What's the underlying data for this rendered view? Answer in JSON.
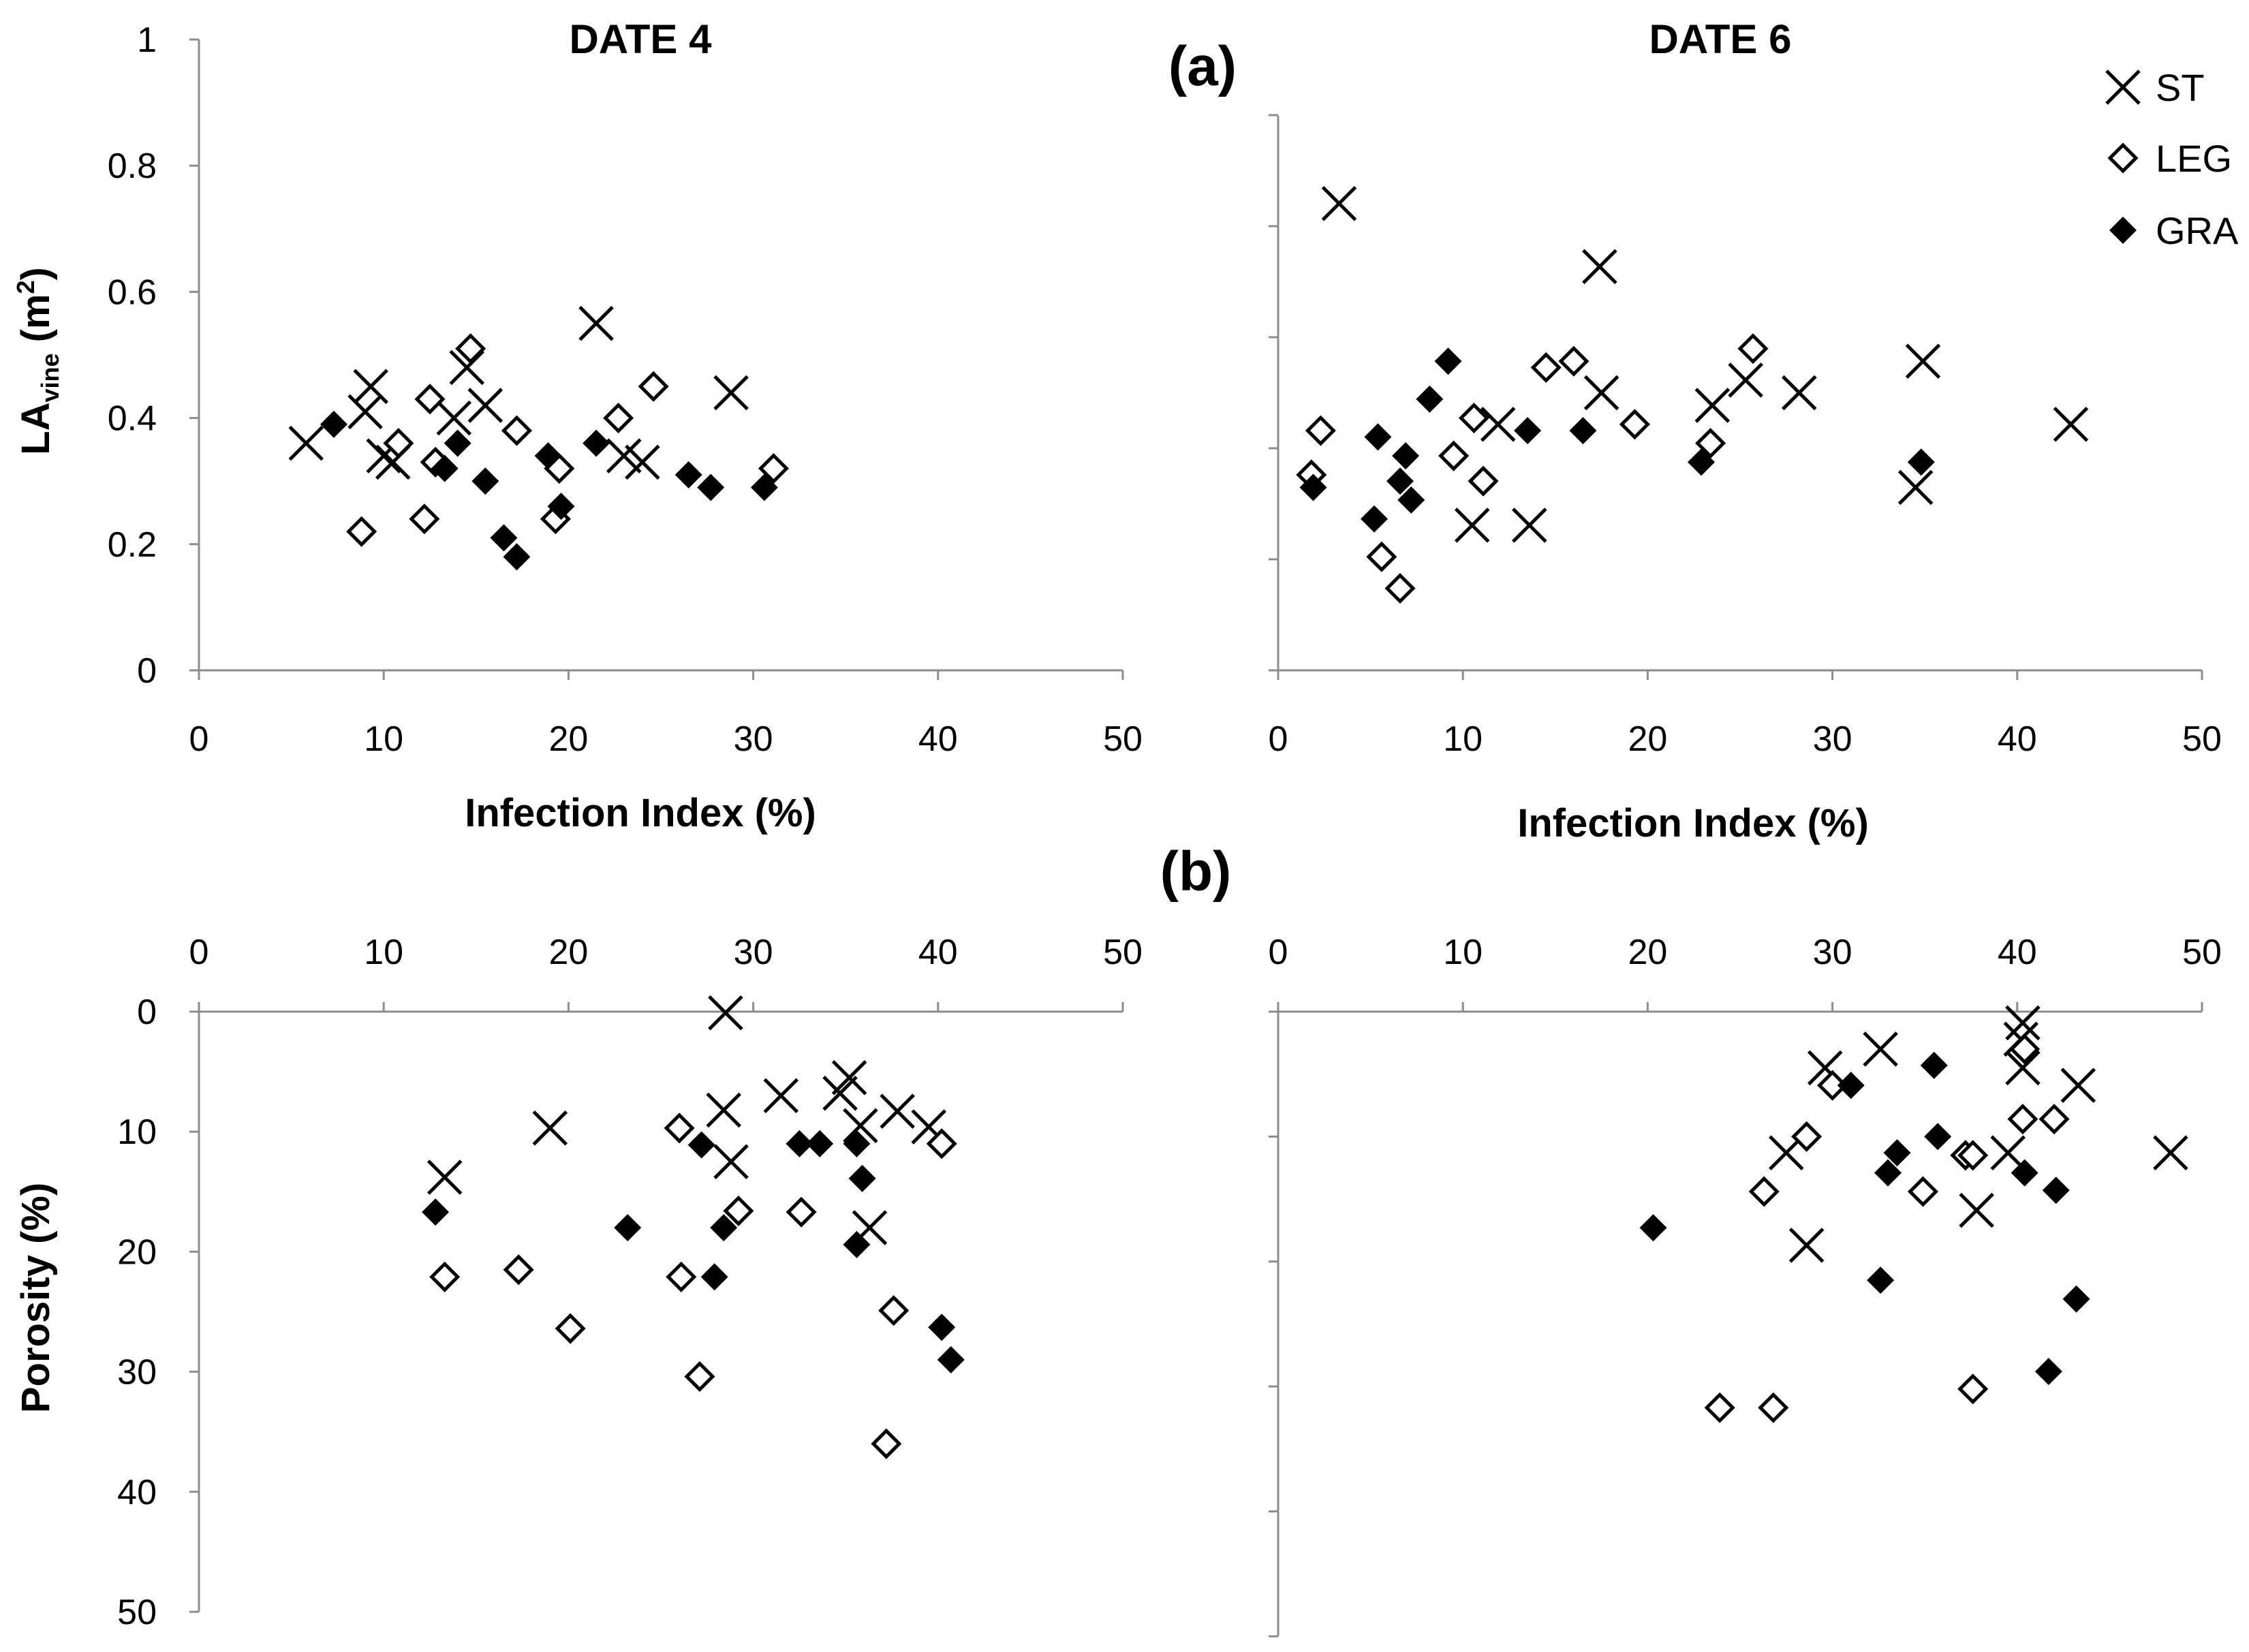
{
  "chart_data": [
    {
      "id": "a-date4",
      "type": "scatter",
      "title": "DATE 4",
      "xlabel": "Infection Index (%)",
      "ylabel_main": "LA",
      "ylabel_sub": "vine",
      "ylabel_unit": " (m",
      "ylabel_sup": "2",
      "ylabel_close": ")",
      "xlim": [
        0,
        50
      ],
      "ylim": [
        0,
        1
      ],
      "xticks": [
        "0",
        "10",
        "20",
        "30",
        "40",
        "50"
      ],
      "yticks": [
        "0",
        "0.2",
        "0.4",
        "0.6",
        "0.8",
        "1"
      ],
      "series": [
        {
          "name": "ST",
          "points": [
            [
              5.8,
              0.36
            ],
            [
              9.3,
              0.45
            ],
            [
              9.0,
              0.41
            ],
            [
              10.0,
              0.34
            ],
            [
              10.5,
              0.33
            ],
            [
              13.8,
              0.4
            ],
            [
              14.5,
              0.48
            ],
            [
              15.5,
              0.42
            ],
            [
              21.5,
              0.55
            ],
            [
              23.0,
              0.34
            ],
            [
              24.0,
              0.33
            ],
            [
              28.8,
              0.44
            ]
          ]
        },
        {
          "name": "LEG",
          "points": [
            [
              8.8,
              0.22
            ],
            [
              10.8,
              0.36
            ],
            [
              12.2,
              0.24
            ],
            [
              12.5,
              0.43
            ],
            [
              12.8,
              0.33
            ],
            [
              14.7,
              0.51
            ],
            [
              17.2,
              0.38
            ],
            [
              19.3,
              0.24
            ],
            [
              19.5,
              0.32
            ],
            [
              22.7,
              0.4
            ],
            [
              24.6,
              0.45
            ],
            [
              31.1,
              0.32
            ]
          ]
        },
        {
          "name": "GRA",
          "points": [
            [
              7.3,
              0.39
            ],
            [
              13.3,
              0.32
            ],
            [
              14.0,
              0.36
            ],
            [
              15.5,
              0.3
            ],
            [
              16.5,
              0.21
            ],
            [
              17.2,
              0.18
            ],
            [
              18.9,
              0.34
            ],
            [
              19.6,
              0.26
            ],
            [
              21.5,
              0.36
            ],
            [
              26.5,
              0.31
            ],
            [
              27.7,
              0.29
            ],
            [
              30.6,
              0.29
            ]
          ]
        }
      ]
    },
    {
      "id": "a-date6",
      "type": "scatter",
      "title": "DATE 6",
      "xlabel": "Infection Index (%)",
      "xlim": [
        0,
        50
      ],
      "ylim": [
        0,
        1
      ],
      "xticks": [
        "0",
        "10",
        "20",
        "30",
        "40",
        "50"
      ],
      "series": [
        {
          "name": "ST",
          "points": [
            [
              3.3,
              0.74
            ],
            [
              10.5,
              0.23
            ],
            [
              11.9,
              0.39
            ],
            [
              13.6,
              0.23
            ],
            [
              17.4,
              0.64
            ],
            [
              17.5,
              0.44
            ],
            [
              23.5,
              0.42
            ],
            [
              25.3,
              0.46
            ],
            [
              28.2,
              0.44
            ],
            [
              34.5,
              0.29
            ],
            [
              34.9,
              0.49
            ],
            [
              42.9,
              0.39
            ]
          ]
        },
        {
          "name": "LEG",
          "points": [
            [
              1.8,
              0.31
            ],
            [
              2.3,
              0.38
            ],
            [
              5.6,
              0.18
            ],
            [
              6.6,
              0.13
            ],
            [
              9.5,
              0.34
            ],
            [
              10.6,
              0.4
            ],
            [
              11.1,
              0.3
            ],
            [
              14.5,
              0.48
            ],
            [
              16.0,
              0.49
            ],
            [
              19.3,
              0.39
            ],
            [
              23.4,
              0.36
            ],
            [
              25.7,
              0.51
            ]
          ]
        },
        {
          "name": "GRA",
          "points": [
            [
              1.9,
              0.29
            ],
            [
              5.2,
              0.24
            ],
            [
              5.4,
              0.37
            ],
            [
              6.6,
              0.3
            ],
            [
              6.9,
              0.34
            ],
            [
              7.2,
              0.27
            ],
            [
              8.2,
              0.43
            ],
            [
              9.2,
              0.49
            ],
            [
              13.5,
              0.38
            ],
            [
              16.5,
              0.38
            ],
            [
              22.9,
              0.33
            ],
            [
              34.8,
              0.33
            ]
          ]
        }
      ]
    },
    {
      "id": "b-date4",
      "type": "scatter",
      "xlabel": "",
      "ylabel": "Porosity (%)",
      "xlim": [
        0,
        50
      ],
      "ylim": [
        0,
        50
      ],
      "y_inverted": true,
      "x_axis_position": "top",
      "xticks": [
        "0",
        "10",
        "20",
        "30",
        "40",
        "50"
      ],
      "yticks": [
        "0",
        "10",
        "20",
        "30",
        "40",
        "50"
      ],
      "series": [
        {
          "name": "ST",
          "points": [
            [
              13.3,
              13.8
            ],
            [
              19.0,
              9.7
            ],
            [
              28.5,
              0.1
            ],
            [
              28.4,
              8.2
            ],
            [
              28.8,
              12.5
            ],
            [
              31.5,
              7.0
            ],
            [
              34.7,
              6.8
            ],
            [
              35.2,
              5.5
            ],
            [
              35.8,
              9.5
            ],
            [
              36.3,
              18.0
            ],
            [
              37.8,
              8.3
            ],
            [
              39.5,
              9.6
            ]
          ]
        },
        {
          "name": "LEG",
          "points": [
            [
              13.3,
              22.1
            ],
            [
              17.3,
              21.5
            ],
            [
              20.1,
              26.4
            ],
            [
              26.0,
              9.7
            ],
            [
              26.1,
              22.1
            ],
            [
              27.1,
              30.4
            ],
            [
              29.2,
              16.6
            ],
            [
              32.6,
              16.7
            ],
            [
              37.2,
              36.0
            ],
            [
              37.6,
              24.9
            ],
            [
              40.2,
              11.0
            ]
          ]
        },
        {
          "name": "GRA",
          "points": [
            [
              12.8,
              16.7
            ],
            [
              23.2,
              18.0
            ],
            [
              27.2,
              11.1
            ],
            [
              27.9,
              22.1
            ],
            [
              28.4,
              18.0
            ],
            [
              32.5,
              11.0
            ],
            [
              33.6,
              11.0
            ],
            [
              35.6,
              11.0
            ],
            [
              35.6,
              19.4
            ],
            [
              35.9,
              13.9
            ],
            [
              40.2,
              26.3
            ],
            [
              40.7,
              29.0
            ]
          ]
        }
      ]
    },
    {
      "id": "b-date6",
      "type": "scatter",
      "xlim": [
        0,
        50
      ],
      "ylim": [
        0,
        50
      ],
      "y_inverted": true,
      "x_axis_position": "top",
      "xticks": [
        "0",
        "10",
        "20",
        "30",
        "40",
        "50"
      ],
      "series": [
        {
          "name": "ST",
          "points": [
            [
              27.5,
              11.3
            ],
            [
              28.6,
              18.7
            ],
            [
              29.6,
              4.5
            ],
            [
              32.6,
              3.0
            ],
            [
              37.8,
              15.9
            ],
            [
              39.5,
              11.3
            ],
            [
              40.2,
              2.2
            ],
            [
              40.3,
              0.9
            ],
            [
              40.3,
              4.5
            ],
            [
              43.3,
              5.9
            ],
            [
              48.3,
              11.3
            ]
          ]
        },
        {
          "name": "LEG",
          "points": [
            [
              23.9,
              31.7
            ],
            [
              26.3,
              14.4
            ],
            [
              26.8,
              31.7
            ],
            [
              28.6,
              10.0
            ],
            [
              30.0,
              5.9
            ],
            [
              34.9,
              14.4
            ],
            [
              37.2,
              11.5
            ],
            [
              37.6,
              11.5
            ],
            [
              37.6,
              30.2
            ],
            [
              40.3,
              8.6
            ],
            [
              40.4,
              3.0
            ],
            [
              42.0,
              8.6
            ]
          ]
        },
        {
          "name": "GRA",
          "points": [
            [
              20.3,
              17.3
            ],
            [
              31.0,
              5.9
            ],
            [
              32.6,
              21.5
            ],
            [
              33.0,
              12.9
            ],
            [
              33.5,
              11.3
            ],
            [
              35.5,
              4.3
            ],
            [
              35.7,
              10.0
            ],
            [
              40.4,
              12.9
            ],
            [
              41.7,
              28.8
            ],
            [
              42.1,
              14.3
            ],
            [
              43.2,
              23.0
            ]
          ]
        }
      ]
    }
  ],
  "panel_labels": {
    "a": "(a)",
    "b": "(b)"
  },
  "legend": {
    "position": "top-right",
    "items": [
      {
        "name": "ST",
        "marker": "x-cross"
      },
      {
        "name": "LEG",
        "marker": "open-diamond"
      },
      {
        "name": "GRA",
        "marker": "filled-diamond"
      }
    ]
  },
  "colors": {
    "marker": "#000000",
    "axis": "#8c8c8c"
  }
}
